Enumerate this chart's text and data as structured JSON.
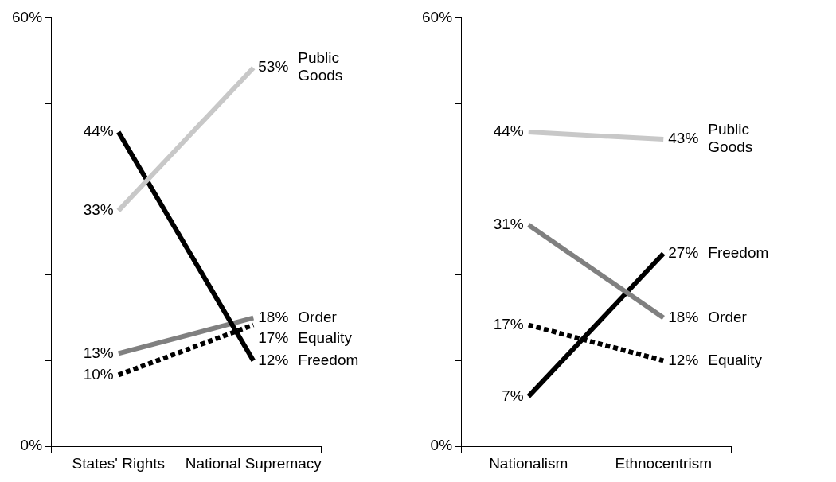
{
  "chart_data": [
    {
      "type": "line",
      "categories": [
        "States' Rights",
        "National Supremacy"
      ],
      "ylim": [
        0,
        60
      ],
      "yticks": [
        {
          "value": 0,
          "label": "0%"
        },
        {
          "value": 12,
          "label": null
        },
        {
          "value": 24,
          "label": null
        },
        {
          "value": 36,
          "label": null
        },
        {
          "value": 48,
          "label": null
        },
        {
          "value": 60,
          "label": "60%"
        }
      ],
      "grid": false,
      "legend": false,
      "marker": "none",
      "series": [
        {
          "name": "Public Goods",
          "color": "#c8c8c8",
          "values": [
            33,
            53
          ],
          "value_labels": [
            "33%",
            "53%"
          ]
        },
        {
          "name": "Freedom",
          "color": "#000000",
          "values": [
            44,
            12
          ],
          "value_labels": [
            "44%",
            "12%"
          ]
        },
        {
          "name": "Order",
          "color": "#808080",
          "values": [
            13,
            18
          ],
          "value_labels": [
            "13%",
            "18%"
          ]
        },
        {
          "name": "Equality",
          "color": "#000000",
          "line_style": "dashed",
          "values": [
            10,
            17
          ],
          "value_labels": [
            "10%",
            "17%"
          ]
        }
      ]
    },
    {
      "type": "line",
      "categories": [
        "Nationalism",
        "Ethnocentrism"
      ],
      "ylim": [
        0,
        60
      ],
      "yticks": [
        {
          "value": 0,
          "label": "0%"
        },
        {
          "value": 12,
          "label": null
        },
        {
          "value": 24,
          "label": null
        },
        {
          "value": 36,
          "label": null
        },
        {
          "value": 48,
          "label": null
        },
        {
          "value": 60,
          "label": "60%"
        }
      ],
      "grid": false,
      "legend": false,
      "marker": "none",
      "series": [
        {
          "name": "Public Goods",
          "color": "#c8c8c8",
          "values": [
            44,
            43
          ],
          "value_labels": [
            "44%",
            "43%"
          ]
        },
        {
          "name": "Order",
          "color": "#808080",
          "values": [
            31,
            18
          ],
          "value_labels": [
            "31%",
            "18%"
          ]
        },
        {
          "name": "Freedom",
          "color": "#000000",
          "values": [
            7,
            27
          ],
          "value_labels": [
            "7%",
            "27%"
          ]
        },
        {
          "name": "Equality",
          "color": "#000000",
          "line_style": "dashed",
          "values": [
            17,
            12
          ],
          "value_labels": [
            "17%",
            "12%"
          ]
        }
      ]
    }
  ]
}
